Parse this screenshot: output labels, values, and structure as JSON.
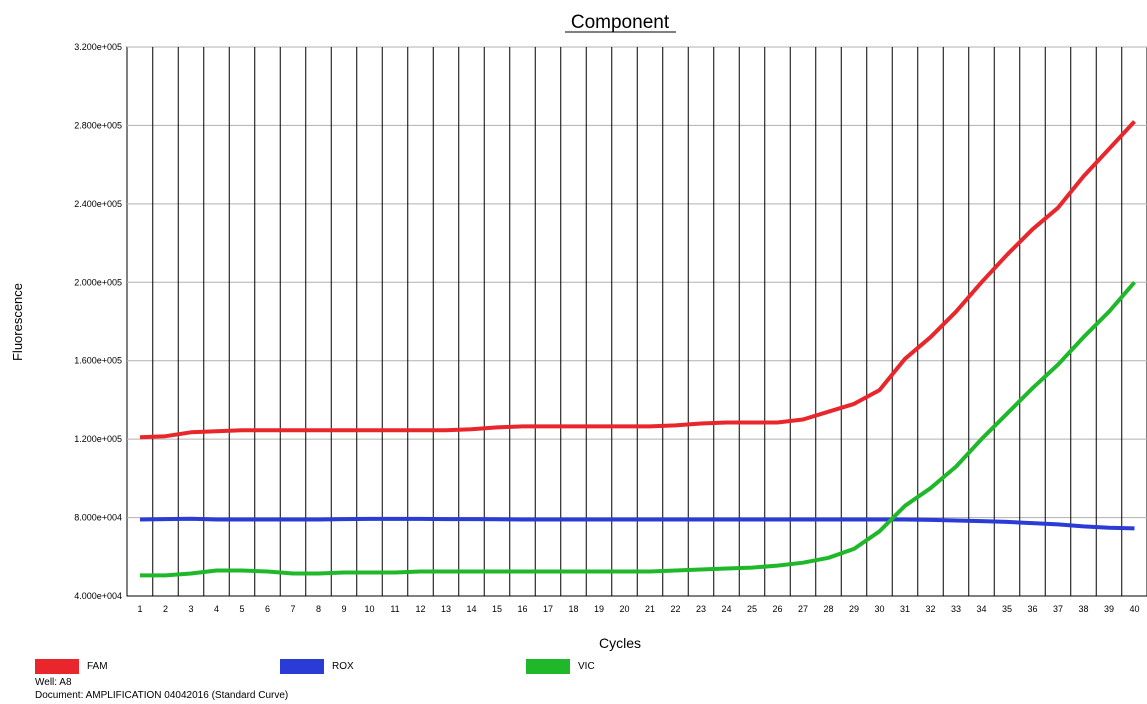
{
  "chart_data": {
    "type": "line",
    "title": "Component",
    "xlabel": "Cycles",
    "ylabel": "Fluorescence",
    "xlim": [
      1,
      40
    ],
    "ylim": [
      40000,
      320000
    ],
    "grid": true,
    "legend_position": "bottom",
    "y_tick_labels": [
      "4.000e+004",
      "8.000e+004",
      "1.200e+005",
      "1.600e+005",
      "2.000e+005",
      "2.400e+005",
      "2.800e+005",
      "3.200e+005"
    ],
    "y_tick_values": [
      40000,
      80000,
      120000,
      160000,
      200000,
      240000,
      280000,
      320000
    ],
    "x": [
      1,
      2,
      3,
      4,
      5,
      6,
      7,
      8,
      9,
      10,
      11,
      12,
      13,
      14,
      15,
      16,
      17,
      18,
      19,
      20,
      21,
      22,
      23,
      24,
      25,
      26,
      27,
      28,
      29,
      30,
      31,
      32,
      33,
      34,
      35,
      36,
      37,
      38,
      39,
      40
    ],
    "series": [
      {
        "name": "FAM",
        "color": "#e8262b",
        "values": [
          121000,
          121500,
          123500,
          124000,
          124500,
          124500,
          124500,
          124500,
          124500,
          124500,
          124500,
          124500,
          124500,
          125000,
          126000,
          126500,
          126500,
          126500,
          126500,
          126500,
          126500,
          127000,
          128000,
          128500,
          128500,
          128500,
          130000,
          134000,
          138000,
          145000,
          161000,
          172000,
          185000,
          200000,
          214000,
          227000,
          238000,
          254000,
          268000,
          282000
        ]
      },
      {
        "name": "ROX",
        "color": "#2b3bd6",
        "values": [
          79000,
          79200,
          79400,
          79000,
          79000,
          79000,
          79000,
          79000,
          79200,
          79300,
          79300,
          79300,
          79200,
          79200,
          79100,
          79000,
          79000,
          79000,
          79000,
          79000,
          79000,
          79000,
          79000,
          79000,
          79000,
          79000,
          79000,
          79000,
          79000,
          79000,
          79000,
          78800,
          78500,
          78200,
          77800,
          77200,
          76500,
          75500,
          74800,
          74500
        ]
      },
      {
        "name": "VIC",
        "color": "#20b82b",
        "values": [
          50500,
          50500,
          51500,
          53000,
          53000,
          52500,
          51500,
          51500,
          52000,
          52000,
          52000,
          52500,
          52500,
          52500,
          52500,
          52500,
          52500,
          52500,
          52500,
          52500,
          52500,
          53000,
          53500,
          54000,
          54500,
          55500,
          57000,
          59500,
          64000,
          73000,
          86000,
          95000,
          106000,
          120000,
          133000,
          146000,
          158000,
          172000,
          185000,
          200000
        ]
      }
    ]
  },
  "footer": {
    "well": "Well: A8",
    "document": "Document: AMPLIFICATION 04042016 (Standard Curve)"
  }
}
